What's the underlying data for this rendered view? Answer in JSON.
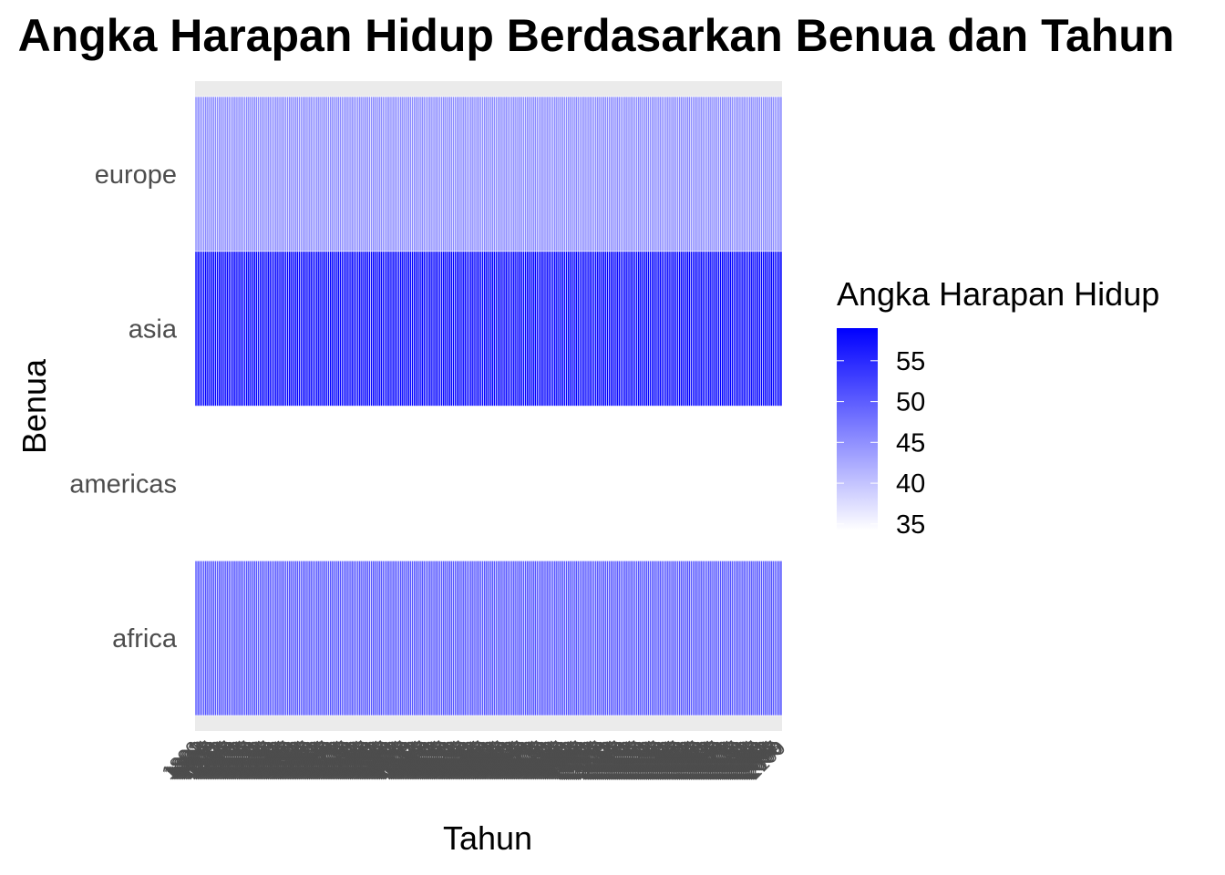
{
  "chart_data": {
    "type": "heatmap",
    "title": "Angka Harapan Hidup Berdasarkan Benua dan Tahun",
    "xlabel": "Tahun",
    "ylabel": "Benua",
    "x_categories": [
      "1800",
      "1801",
      "1802",
      "1803",
      "1804",
      "1805",
      "1806",
      "1807",
      "1808",
      "1809",
      "1810",
      "1811",
      "1812",
      "1813",
      "1814",
      "1815",
      "1816",
      "1817",
      "1818",
      "1819",
      "1820",
      "1821",
      "1822",
      "1823",
      "1824",
      "1825",
      "1826",
      "1827",
      "1828",
      "1829",
      "1830",
      "1831",
      "1832",
      "1833",
      "1834",
      "1835",
      "1836",
      "1837",
      "1838",
      "1839",
      "1840",
      "1841",
      "1842",
      "1843",
      "1844",
      "1845",
      "1846",
      "1847",
      "1848",
      "1849",
      "1850",
      "1851",
      "1852",
      "1853",
      "1854",
      "1855",
      "1856",
      "1857",
      "1858",
      "1859",
      "1860",
      "1861",
      "1862",
      "1863",
      "1864",
      "1865",
      "1866",
      "1867",
      "1868",
      "1869",
      "1870",
      "1871",
      "1872",
      "1873",
      "1874",
      "1875",
      "1876",
      "1877",
      "1878",
      "1879",
      "1880",
      "1881",
      "1882",
      "1883",
      "1884",
      "1885",
      "1886",
      "1887",
      "1888",
      "1889",
      "1890",
      "1891",
      "1892",
      "1893",
      "1894",
      "1895",
      "1896",
      "1897",
      "1898",
      "1899",
      "1900",
      "1901",
      "1902",
      "1903",
      "1904",
      "1905",
      "1906",
      "1907",
      "1908",
      "1909",
      "1910",
      "1911",
      "1912",
      "1913",
      "1914",
      "1915",
      "1916",
      "1917",
      "1918",
      "1919",
      "1920",
      "1921",
      "1922",
      "1923",
      "1924",
      "1925",
      "1926",
      "1927",
      "1928",
      "1929",
      "1930",
      "1931",
      "1932",
      "1933",
      "1934",
      "1935",
      "1936",
      "1937",
      "1938",
      "1939",
      "1940",
      "1941",
      "1942",
      "1943",
      "1944",
      "1945",
      "1946",
      "1947",
      "1948",
      "1949",
      "1950",
      "1951",
      "1952",
      "1953",
      "1954",
      "1955",
      "1956",
      "1957",
      "1958",
      "1959",
      "1960",
      "1961",
      "1962",
      "1963",
      "1964",
      "1965",
      "1966",
      "1967",
      "1968",
      "1969",
      "1970",
      "1971",
      "1972",
      "1973",
      "1974",
      "1975",
      "1976",
      "1977",
      "1978",
      "1979",
      "1980",
      "1981",
      "1982",
      "1983",
      "1984",
      "1985",
      "1986",
      "1987",
      "1988",
      "1989",
      "1990",
      "1991",
      "1992",
      "1993",
      "1994",
      "1995",
      "1996",
      "1997",
      "1998",
      "1999",
      "2000",
      "2001",
      "2002",
      "2003",
      "2004",
      "2005",
      "2006",
      "2007",
      "2008",
      "2009",
      "2010",
      "2011",
      "2012",
      "2013",
      "2014",
      "2015",
      "2016",
      "2017",
      "2018",
      "2019",
      "2020",
      "2021",
      "2022",
      "2023",
      "2024",
      "2025",
      "2026",
      "2027",
      "2028",
      "2029",
      "2030",
      "2031",
      "2032",
      "2033",
      "2034",
      "2035",
      "2036",
      "2037",
      "2038",
      "2039",
      "2040",
      "2041",
      "2042",
      "2043",
      "2044",
      "2045",
      "2046",
      "2047",
      "2048",
      "2049",
      "2050",
      "2051",
      "2052",
      "2053",
      "2054",
      "2055",
      "2056",
      "2057",
      "2058",
      "2059",
      "2060",
      "2061",
      "2062",
      "2063",
      "2064",
      "2065",
      "2066",
      "2067",
      "2068",
      "2069",
      "2070",
      "2071",
      "2072",
      "2073",
      "2074",
      "2075",
      "2076",
      "2077",
      "2078",
      "2079",
      "2080",
      "2081",
      "2082",
      "2083",
      "2084",
      "2085",
      "2086",
      "2087",
      "2088",
      "2089",
      "2090",
      "2091",
      "2092",
      "2093",
      "2094",
      "2095",
      "2096",
      "2097",
      "2098",
      "2099",
      "2100"
    ],
    "y_categories": [
      "africa",
      "americas",
      "asia",
      "europe"
    ],
    "series": [
      {
        "name": "africa",
        "value": 51
      },
      {
        "name": "americas",
        "value": 35
      },
      {
        "name": "asia",
        "value": 59
      },
      {
        "name": "europe",
        "value": 46
      }
    ],
    "value_range": [
      35,
      59
    ],
    "legend": {
      "title": "Angka Harapan Hidup",
      "ticks": [
        35,
        40,
        45,
        50,
        55
      ],
      "low_color": "#ffffff",
      "high_color": "#0000ff",
      "placement": "right"
    }
  }
}
